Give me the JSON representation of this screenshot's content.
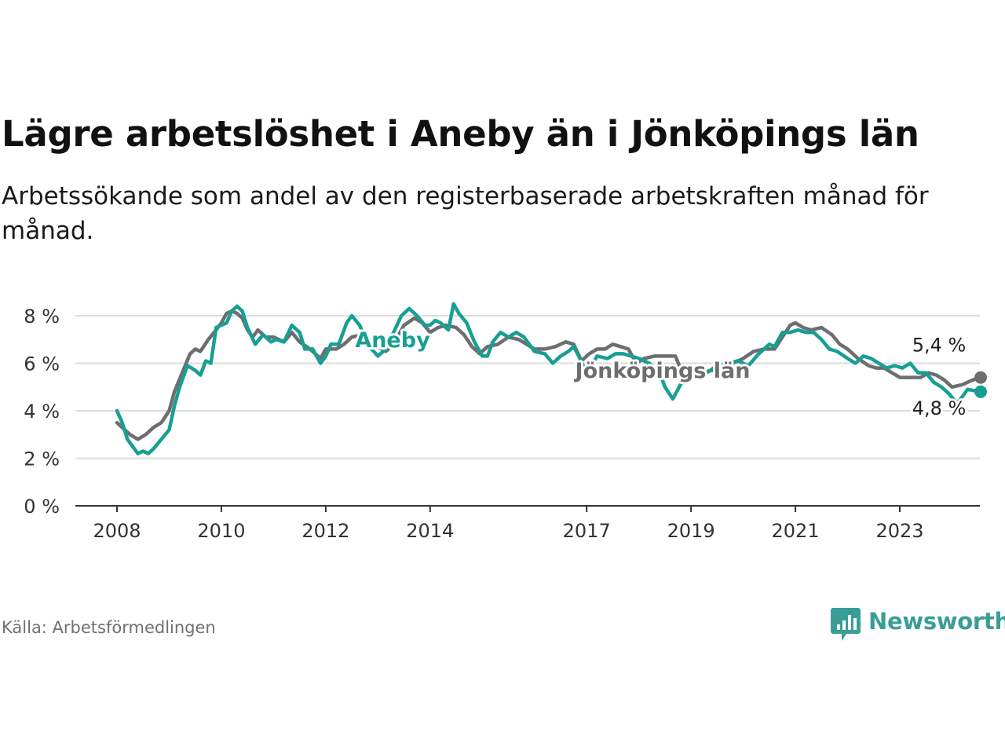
{
  "title": "Lägre arbetslöshet i Aneby än i Jönköpings län",
  "subtitle": "Arbetssökande som andel av den registerbaserade arbetskraften månad för månad.",
  "source": "Källa: Arbetsförmedlingen",
  "brand": "Newsworthy",
  "chart_data": {
    "type": "line",
    "title": "Lägre arbetslöshet i Aneby än i Jönköpings län",
    "xlabel": "",
    "ylabel": "",
    "ylim": [
      0,
      8.5
    ],
    "xlim": [
      2007.3,
      2024.7
    ],
    "y_ticks": [
      0,
      2,
      4,
      6,
      8
    ],
    "y_tick_labels": [
      "0 %",
      "2 %",
      "4 %",
      "6 %",
      "8 %"
    ],
    "x_ticks": [
      2008,
      2010,
      2012,
      2014,
      2017,
      2019,
      2021,
      2023
    ],
    "x_tick_labels": [
      "2008",
      "2010",
      "2012",
      "2014",
      "2017",
      "2019",
      "2021",
      "2023"
    ],
    "grid": true,
    "series": [
      {
        "name": "Jönköpings län",
        "color": "#6e6e70",
        "label_text": "Jönköpings län",
        "end_label": "5,4 %",
        "points": [
          [
            2008.0,
            3.5
          ],
          [
            2008.1,
            3.3
          ],
          [
            2008.25,
            3.0
          ],
          [
            2008.4,
            2.8
          ],
          [
            2008.55,
            3.0
          ],
          [
            2008.7,
            3.3
          ],
          [
            2008.85,
            3.5
          ],
          [
            2009.0,
            4.0
          ],
          [
            2009.1,
            4.8
          ],
          [
            2009.25,
            5.6
          ],
          [
            2009.4,
            6.4
          ],
          [
            2009.5,
            6.6
          ],
          [
            2009.6,
            6.5
          ],
          [
            2009.75,
            7.0
          ],
          [
            2009.9,
            7.4
          ],
          [
            2010.0,
            7.7
          ],
          [
            2010.1,
            8.1
          ],
          [
            2010.2,
            8.2
          ],
          [
            2010.3,
            8.1
          ],
          [
            2010.4,
            7.9
          ],
          [
            2010.5,
            7.4
          ],
          [
            2010.6,
            7.1
          ],
          [
            2010.7,
            7.4
          ],
          [
            2010.85,
            7.1
          ],
          [
            2011.0,
            7.1
          ],
          [
            2011.2,
            6.9
          ],
          [
            2011.35,
            7.3
          ],
          [
            2011.5,
            6.9
          ],
          [
            2011.7,
            6.6
          ],
          [
            2011.9,
            6.2
          ],
          [
            2012.0,
            6.6
          ],
          [
            2012.2,
            6.6
          ],
          [
            2012.35,
            6.8
          ],
          [
            2012.5,
            7.1
          ],
          [
            2012.7,
            7.2
          ],
          [
            2012.9,
            6.9
          ],
          [
            2013.0,
            6.7
          ],
          [
            2013.15,
            6.5
          ],
          [
            2013.3,
            6.8
          ],
          [
            2013.5,
            7.6
          ],
          [
            2013.7,
            7.9
          ],
          [
            2013.85,
            7.7
          ],
          [
            2014.0,
            7.3
          ],
          [
            2014.15,
            7.5
          ],
          [
            2014.3,
            7.6
          ],
          [
            2014.5,
            7.5
          ],
          [
            2014.65,
            7.2
          ],
          [
            2014.8,
            6.7
          ],
          [
            2014.95,
            6.4
          ],
          [
            2015.1,
            6.7
          ],
          [
            2015.3,
            6.8
          ],
          [
            2015.5,
            7.1
          ],
          [
            2015.7,
            7.0
          ],
          [
            2015.85,
            6.8
          ],
          [
            2016.0,
            6.6
          ],
          [
            2016.2,
            6.6
          ],
          [
            2016.4,
            6.7
          ],
          [
            2016.6,
            6.9
          ],
          [
            2016.75,
            6.8
          ],
          [
            2016.9,
            6.1
          ],
          [
            2017.05,
            6.4
          ],
          [
            2017.2,
            6.6
          ],
          [
            2017.35,
            6.6
          ],
          [
            2017.5,
            6.8
          ],
          [
            2017.65,
            6.7
          ],
          [
            2017.8,
            6.6
          ],
          [
            2017.95,
            6.0
          ],
          [
            2018.1,
            6.2
          ],
          [
            2018.3,
            6.3
          ],
          [
            2018.5,
            6.3
          ],
          [
            2018.7,
            6.3
          ],
          [
            2018.85,
            5.5
          ],
          [
            2019.0,
            5.4
          ],
          [
            2019.2,
            5.6
          ],
          [
            2019.4,
            5.7
          ],
          [
            2019.6,
            5.6
          ],
          [
            2019.8,
            6.0
          ],
          [
            2020.0,
            6.2
          ],
          [
            2020.2,
            6.5
          ],
          [
            2020.4,
            6.6
          ],
          [
            2020.6,
            6.6
          ],
          [
            2020.75,
            7.1
          ],
          [
            2020.9,
            7.6
          ],
          [
            2021.0,
            7.7
          ],
          [
            2021.15,
            7.5
          ],
          [
            2021.3,
            7.4
          ],
          [
            2021.5,
            7.5
          ],
          [
            2021.7,
            7.2
          ],
          [
            2021.85,
            6.8
          ],
          [
            2022.0,
            6.6
          ],
          [
            2022.2,
            6.2
          ],
          [
            2022.4,
            5.9
          ],
          [
            2022.55,
            5.8
          ],
          [
            2022.7,
            5.8
          ],
          [
            2022.85,
            5.6
          ],
          [
            2023.0,
            5.4
          ],
          [
            2023.2,
            5.4
          ],
          [
            2023.4,
            5.4
          ],
          [
            2023.55,
            5.6
          ],
          [
            2023.7,
            5.5
          ],
          [
            2023.85,
            5.3
          ],
          [
            2024.0,
            5.0
          ],
          [
            2024.2,
            5.1
          ],
          [
            2024.4,
            5.3
          ],
          [
            2024.55,
            5.4
          ]
        ]
      },
      {
        "name": "Aneby",
        "color": "#179f94",
        "label_text": "Aneby",
        "end_label": "4,8 %",
        "points": [
          [
            2008.0,
            4.0
          ],
          [
            2008.1,
            3.5
          ],
          [
            2008.2,
            2.8
          ],
          [
            2008.3,
            2.5
          ],
          [
            2008.4,
            2.2
          ],
          [
            2008.5,
            2.3
          ],
          [
            2008.6,
            2.2
          ],
          [
            2008.7,
            2.4
          ],
          [
            2008.85,
            2.8
          ],
          [
            2009.0,
            3.2
          ],
          [
            2009.1,
            4.2
          ],
          [
            2009.2,
            5.0
          ],
          [
            2009.35,
            5.9
          ],
          [
            2009.5,
            5.7
          ],
          [
            2009.6,
            5.5
          ],
          [
            2009.7,
            6.1
          ],
          [
            2009.8,
            6.0
          ],
          [
            2009.9,
            7.5
          ],
          [
            2010.0,
            7.6
          ],
          [
            2010.1,
            7.7
          ],
          [
            2010.2,
            8.2
          ],
          [
            2010.3,
            8.4
          ],
          [
            2010.4,
            8.2
          ],
          [
            2010.5,
            7.5
          ],
          [
            2010.65,
            6.8
          ],
          [
            2010.8,
            7.2
          ],
          [
            2010.95,
            6.9
          ],
          [
            2011.05,
            7.0
          ],
          [
            2011.2,
            6.9
          ],
          [
            2011.35,
            7.6
          ],
          [
            2011.5,
            7.3
          ],
          [
            2011.6,
            6.6
          ],
          [
            2011.75,
            6.6
          ],
          [
            2011.9,
            6.0
          ],
          [
            2012.0,
            6.3
          ],
          [
            2012.1,
            6.8
          ],
          [
            2012.25,
            6.8
          ],
          [
            2012.4,
            7.7
          ],
          [
            2012.5,
            8.0
          ],
          [
            2012.65,
            7.6
          ],
          [
            2012.8,
            6.8
          ],
          [
            2013.0,
            6.3
          ],
          [
            2013.15,
            6.6
          ],
          [
            2013.3,
            7.3
          ],
          [
            2013.45,
            8.0
          ],
          [
            2013.6,
            8.3
          ],
          [
            2013.75,
            8.0
          ],
          [
            2013.9,
            7.6
          ],
          [
            2014.0,
            7.6
          ],
          [
            2014.1,
            7.8
          ],
          [
            2014.2,
            7.7
          ],
          [
            2014.35,
            7.4
          ],
          [
            2014.45,
            8.5
          ],
          [
            2014.55,
            8.1
          ],
          [
            2014.7,
            7.7
          ],
          [
            2014.85,
            6.9
          ],
          [
            2015.0,
            6.3
          ],
          [
            2015.1,
            6.3
          ],
          [
            2015.2,
            6.9
          ],
          [
            2015.35,
            7.3
          ],
          [
            2015.5,
            7.1
          ],
          [
            2015.65,
            7.3
          ],
          [
            2015.8,
            7.1
          ],
          [
            2016.0,
            6.5
          ],
          [
            2016.2,
            6.4
          ],
          [
            2016.35,
            6.0
          ],
          [
            2016.5,
            6.3
          ],
          [
            2016.65,
            6.5
          ],
          [
            2016.75,
            6.7
          ],
          [
            2016.85,
            6.3
          ],
          [
            2017.0,
            5.6
          ],
          [
            2017.2,
            6.3
          ],
          [
            2017.4,
            6.2
          ],
          [
            2017.55,
            6.4
          ],
          [
            2017.7,
            6.4
          ],
          [
            2018.0,
            6.2
          ],
          [
            2018.2,
            6.0
          ],
          [
            2018.4,
            5.6
          ],
          [
            2018.5,
            5.0
          ],
          [
            2018.65,
            4.5
          ],
          [
            2018.8,
            5.1
          ],
          [
            2018.95,
            5.5
          ],
          [
            2019.1,
            5.8
          ],
          [
            2019.3,
            5.6
          ],
          [
            2019.5,
            5.9
          ],
          [
            2019.7,
            6.0
          ],
          [
            2019.9,
            6.1
          ],
          [
            2020.1,
            5.9
          ],
          [
            2020.3,
            6.4
          ],
          [
            2020.5,
            6.8
          ],
          [
            2020.6,
            6.7
          ],
          [
            2020.75,
            7.3
          ],
          [
            2020.9,
            7.3
          ],
          [
            2021.05,
            7.4
          ],
          [
            2021.2,
            7.3
          ],
          [
            2021.35,
            7.3
          ],
          [
            2021.5,
            7.0
          ],
          [
            2021.65,
            6.6
          ],
          [
            2021.8,
            6.5
          ],
          [
            2022.0,
            6.2
          ],
          [
            2022.15,
            6.0
          ],
          [
            2022.3,
            6.3
          ],
          [
            2022.45,
            6.2
          ],
          [
            2022.6,
            6.0
          ],
          [
            2022.75,
            5.8
          ],
          [
            2022.9,
            5.9
          ],
          [
            2023.05,
            5.8
          ],
          [
            2023.2,
            6.0
          ],
          [
            2023.35,
            5.6
          ],
          [
            2023.5,
            5.6
          ],
          [
            2023.65,
            5.2
          ],
          [
            2023.8,
            5.0
          ],
          [
            2023.95,
            4.7
          ],
          [
            2024.1,
            4.3
          ],
          [
            2024.3,
            4.9
          ],
          [
            2024.55,
            4.8
          ]
        ]
      }
    ]
  }
}
